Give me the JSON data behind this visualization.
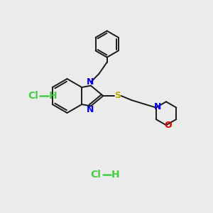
{
  "background_color": "#ebebeb",
  "bond_color": "#1a1a1a",
  "N_color": "#0000ee",
  "S_color": "#bbaa00",
  "O_color": "#dd0000",
  "HCl_color": "#44cc44",
  "line_width": 1.4,
  "figsize": [
    3.0,
    3.0
  ],
  "dpi": 100,
  "xlim": [
    0,
    10
  ],
  "ylim": [
    0,
    10
  ]
}
